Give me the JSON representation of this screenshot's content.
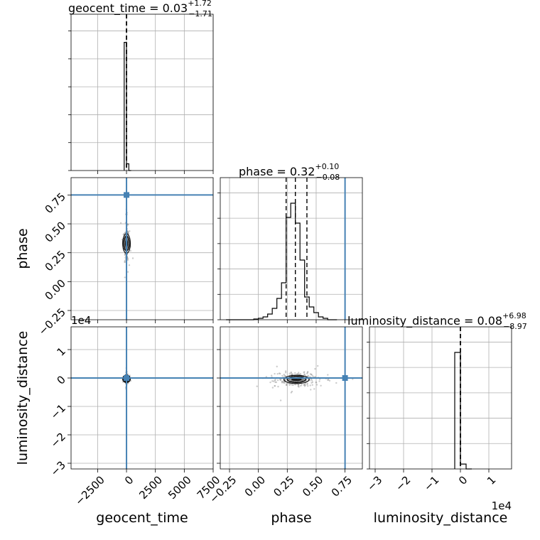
{
  "chart_data": {
    "type": "corner",
    "parameters": [
      "geocent_time",
      "phase",
      "luminosity_distance"
    ],
    "colors": {
      "truth": "#4682b4",
      "hist": "#000000",
      "points": "#9a9a9a",
      "grid": "#b0b0b0"
    },
    "axes": {
      "geocent_time": {
        "lim": [
          -4800,
          7500
        ],
        "ticks": [
          -2500,
          0,
          2500,
          5000,
          7500
        ],
        "tick_labels": [
          "−2500",
          "0",
          "2500",
          "5000",
          "7500"
        ]
      },
      "phase": {
        "lim": [
          -0.33,
          0.9
        ],
        "ticks": [
          -0.25,
          0.0,
          0.25,
          0.5,
          0.75
        ],
        "tick_labels": [
          "−0.25",
          "0.00",
          "0.25",
          "0.50",
          "0.75"
        ]
      },
      "luminosity_distance": {
        "lim": [
          -3.2,
          1.8
        ],
        "ticks": [
          -3,
          -2,
          -1,
          0,
          1
        ],
        "tick_labels": [
          "−3",
          "−2",
          "−1",
          "0",
          "1"
        ],
        "offset_label": "1e4"
      }
    },
    "truths": {
      "geocent_time": 0,
      "phase": 0.75,
      "luminosity_distance": 0
    },
    "diagonal": [
      {
        "parameter": "geocent_time",
        "title": {
          "main": "geocent_time = 0.03",
          "sup": "+1.72",
          "sub": "−1.71"
        },
        "quantiles": [
          -1.71,
          0.03,
          1.72
        ],
        "hist": {
          "bin_edges": [
            -200,
            0,
            200,
            400
          ],
          "counts": [
            0.95,
            0.05,
            0.0
          ]
        }
      },
      {
        "parameter": "phase",
        "title": {
          "main": "phase = 0.32",
          "sup": "+0.10",
          "sub": "−0.08"
        },
        "quantiles": [
          0.24,
          0.32,
          0.42
        ],
        "hist": {
          "bin_edges": [
            -0.28,
            -0.24,
            -0.2,
            -0.16,
            -0.12,
            -0.08,
            -0.04,
            0.0,
            0.04,
            0.08,
            0.12,
            0.16,
            0.2,
            0.24,
            0.28,
            0.32,
            0.36,
            0.4,
            0.44,
            0.48,
            0.52,
            0.56,
            0.6,
            0.64,
            0.68
          ],
          "counts": [
            0.0,
            0.0,
            0.0,
            0.0,
            0.0,
            0.0,
            0.005,
            0.01,
            0.02,
            0.04,
            0.08,
            0.15,
            0.26,
            0.72,
            0.82,
            0.68,
            0.42,
            0.16,
            0.09,
            0.05,
            0.02,
            0.01,
            0.0,
            0.0
          ]
        }
      },
      {
        "parameter": "luminosity_distance",
        "title": {
          "main": "luminosity_distance = 0.08",
          "sup": "+6.98",
          "sub": "−8.97"
        },
        "quantiles": [
          -0.00089,
          8e-06,
          0.0007
        ],
        "hist": {
          "bin_edges": [
            -0.2,
            0.0,
            0.2,
            0.4
          ],
          "counts": [
            0.95,
            0.04,
            0.0
          ]
        }
      }
    ],
    "panel_ylabels": [
      "phase",
      "luminosity_distance"
    ],
    "panel_xlabels": [
      "geocent_time",
      "phase",
      "luminosity_distance"
    ],
    "lower_panels": [
      {
        "x": "geocent_time",
        "y": "phase",
        "center": [
          0,
          0.33
        ],
        "spread": [
          90,
          0.07
        ]
      },
      {
        "x": "geocent_time",
        "y": "luminosity_distance",
        "center": [
          0,
          -0.03
        ],
        "spread": [
          60,
          0.06
        ]
      },
      {
        "x": "phase",
        "y": "luminosity_distance",
        "center": [
          0.33,
          -0.05
        ],
        "spread": [
          0.09,
          0.12
        ]
      }
    ]
  }
}
